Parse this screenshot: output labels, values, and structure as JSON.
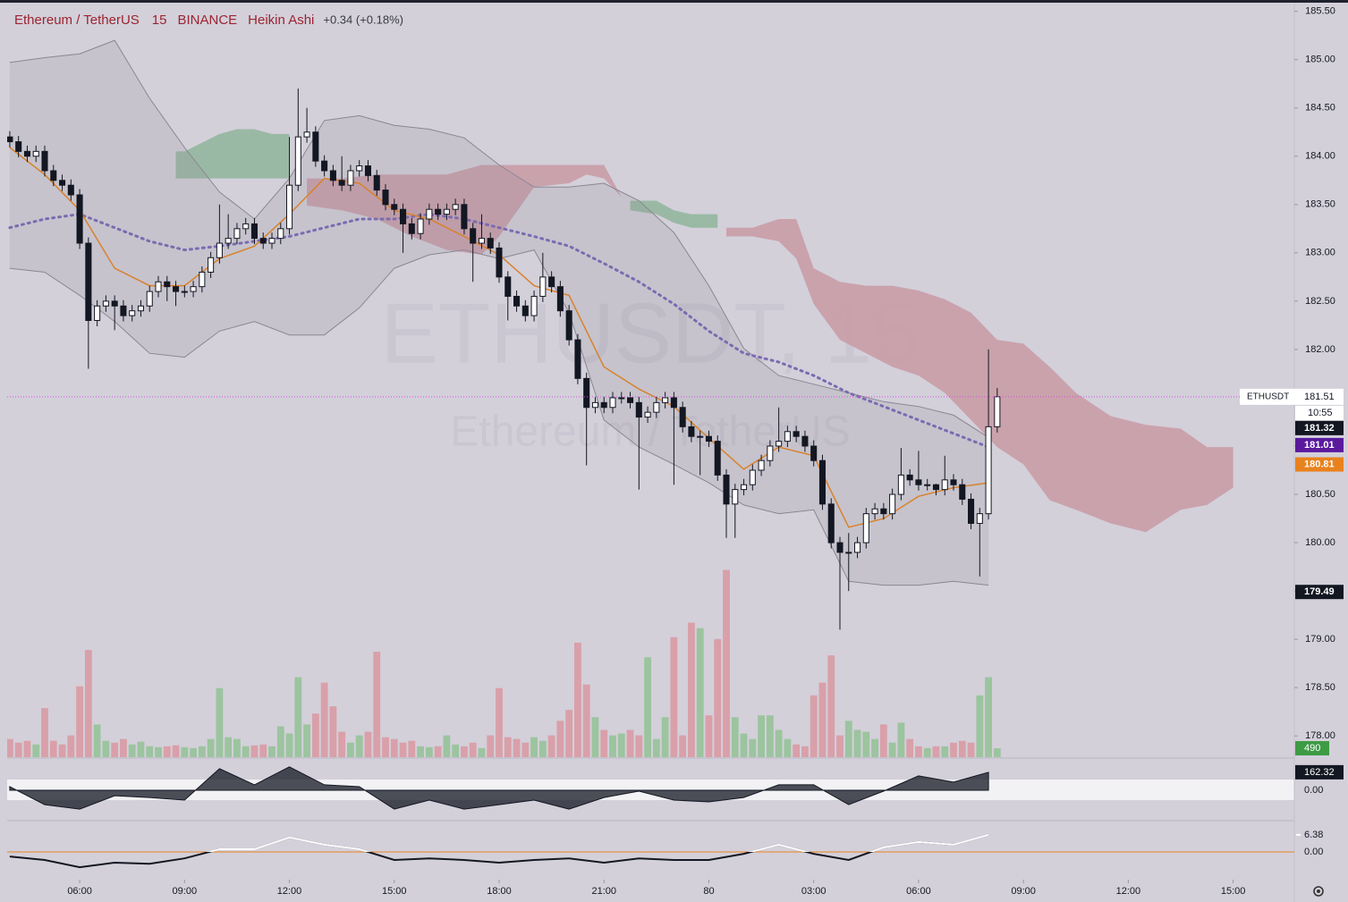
{
  "header": {
    "symbol": "Ethereum / TetherUS",
    "interval": "15",
    "exchange": "BINANCE",
    "style": "Heikin Ashi",
    "change": "+0.34 (+0.18%)"
  },
  "watermark": {
    "line1": "ETHUSDT, 15",
    "line2": "Ethereum / TetherUS"
  },
  "chart_data": {
    "type": "candlestick",
    "xlim": [
      -0.3,
      147
    ],
    "xticks": [
      {
        "value": 8,
        "label": "06:00"
      },
      {
        "value": 20,
        "label": "09:00"
      },
      {
        "value": 32,
        "label": "12:00"
      },
      {
        "value": 44,
        "label": "15:00"
      },
      {
        "value": 56,
        "label": "18:00"
      },
      {
        "value": 68,
        "label": "21:00"
      },
      80,
      {
        "value": 92,
        "label": "03:00"
      },
      {
        "value": 104,
        "label": "06:00"
      },
      {
        "value": 116,
        "label": "09:00"
      },
      {
        "value": 128,
        "label": "12:00"
      },
      {
        "value": 140,
        "label": "15:00"
      }
    ],
    "ylim": [
      177.78,
      185.58
    ],
    "yticks": [
      {
        "value": 185.5,
        "label": "185.50"
      },
      {
        "value": 185,
        "label": "185.00"
      },
      {
        "value": 184.5,
        "label": "184.50"
      },
      {
        "value": 184,
        "label": "184.00"
      },
      {
        "value": 183.5,
        "label": "183.50"
      },
      {
        "value": 183,
        "label": "183.00"
      },
      {
        "value": 182.5,
        "label": "182.50"
      },
      {
        "value": 182,
        "label": "182.00"
      },
      {
        "value": 181.5,
        "label": "181.50"
      },
      {
        "value": 181,
        "label": "181.00"
      },
      {
        "value": 180.5,
        "label": "180.50"
      },
      {
        "value": 180,
        "label": "180.00"
      },
      {
        "value": 179.5,
        "label": "179.50"
      },
      {
        "value": 179,
        "label": "179.00"
      },
      {
        "value": 178.5,
        "label": "178.50"
      },
      {
        "value": 178,
        "label": "178.00"
      }
    ],
    "up_color": "#ffffff",
    "down_color": "#131722",
    "open": [
      184.2,
      184.15,
      184.05,
      184.0,
      184.05,
      183.85,
      183.75,
      183.7,
      183.6,
      183.1,
      182.3,
      182.45,
      182.5,
      182.45,
      182.35,
      182.4,
      182.45,
      182.6,
      182.7,
      182.65,
      182.6,
      182.6,
      182.65,
      182.8,
      182.95,
      183.1,
      183.15,
      183.25,
      183.3,
      183.15,
      183.1,
      183.15,
      183.25,
      183.7,
      184.2,
      184.25,
      183.95,
      183.85,
      183.75,
      183.7,
      183.85,
      183.9,
      183.8,
      183.65,
      183.5,
      183.45,
      183.3,
      183.2,
      183.35,
      183.45,
      183.4,
      183.45,
      183.5,
      183.25,
      183.1,
      183.15,
      183.05,
      182.75,
      182.55,
      182.45,
      182.35,
      182.55,
      182.75,
      182.65,
      182.4,
      182.1,
      181.7,
      181.4,
      181.45,
      181.4,
      181.5,
      181.5,
      181.45,
      181.3,
      181.35,
      181.45,
      181.5,
      181.4,
      181.2,
      181.1,
      181.1,
      181.05,
      180.7,
      180.4,
      180.55,
      180.6,
      180.75,
      180.85,
      181.0,
      181.05,
      181.15,
      181.1,
      181.0,
      180.85,
      180.4,
      180.0,
      179.9,
      179.9,
      180.0,
      180.3,
      180.35,
      180.3,
      180.5,
      180.7,
      180.65,
      180.6,
      180.6,
      180.55,
      180.65,
      180.6,
      180.45,
      180.2,
      180.3,
      181.2
    ],
    "high": [
      184.26,
      184.21,
      184.11,
      184.11,
      184.11,
      183.91,
      183.81,
      183.76,
      183.66,
      183.16,
      182.51,
      182.56,
      182.56,
      182.51,
      182.46,
      182.51,
      182.66,
      182.76,
      182.76,
      182.71,
      182.66,
      182.71,
      182.86,
      183.01,
      183.5,
      183.4,
      183.31,
      183.36,
      183.36,
      183.21,
      183.21,
      183.31,
      184.2,
      184.7,
      184.5,
      184.31,
      184.01,
      183.91,
      184.0,
      183.91,
      183.96,
      183.96,
      183.86,
      183.71,
      183.56,
      183.51,
      183.36,
      183.41,
      183.51,
      183.51,
      183.51,
      183.56,
      183.56,
      183.31,
      183.4,
      183.21,
      183.11,
      182.81,
      182.61,
      182.51,
      182.61,
      183.0,
      182.81,
      182.71,
      182.46,
      182.16,
      181.76,
      181.51,
      181.51,
      181.56,
      181.56,
      181.56,
      181.51,
      181.41,
      181.51,
      181.56,
      181.56,
      181.46,
      181.26,
      181.16,
      181.16,
      181.11,
      180.76,
      180.61,
      180.66,
      180.81,
      180.91,
      181.06,
      181.4,
      181.21,
      181.21,
      181.16,
      181.06,
      180.91,
      180.46,
      180.06,
      180.1,
      180.06,
      180.36,
      180.41,
      180.41,
      180.56,
      180.98,
      180.76,
      180.95,
      180.66,
      180.61,
      180.9,
      180.71,
      180.66,
      180.51,
      180.36,
      182.0,
      181.6
    ],
    "low": [
      184.09,
      183.99,
      183.94,
      183.94,
      183.79,
      183.69,
      183.64,
      183.54,
      183.04,
      181.8,
      182.24,
      182.39,
      182.2,
      182.29,
      182.29,
      182.34,
      182.39,
      182.54,
      182.5,
      182.45,
      182.54,
      182.54,
      182.59,
      182.74,
      182.89,
      183.04,
      183.09,
      183.19,
      183.09,
      183.04,
      183.04,
      183.09,
      183.19,
      183.64,
      184.14,
      183.89,
      183.79,
      183.69,
      183.64,
      183.64,
      183.79,
      183.74,
      183.59,
      183.44,
      183.39,
      183.0,
      183.14,
      183.14,
      183.29,
      183.34,
      183.34,
      183.39,
      183.19,
      182.7,
      183.04,
      182.99,
      182.69,
      182.3,
      182.39,
      182.29,
      182.29,
      182.49,
      182.59,
      182.34,
      182.04,
      181.64,
      180.8,
      181.34,
      181.34,
      181.34,
      181.44,
      181.39,
      180.55,
      181.24,
      181.29,
      181.39,
      180.6,
      181.14,
      181.04,
      180.7,
      180.99,
      180.64,
      180.05,
      180.05,
      180.49,
      180.54,
      180.69,
      180.79,
      180.94,
      180.99,
      181.04,
      180.94,
      180.79,
      180.34,
      179.94,
      179.1,
      179.5,
      179.84,
      179.94,
      180.24,
      180.24,
      180.24,
      180.44,
      180.59,
      180.54,
      180.54,
      180.49,
      180.49,
      180.54,
      180.39,
      180.14,
      179.65,
      180.24,
      181.14
    ],
    "close": [
      184.15,
      184.05,
      184.0,
      184.05,
      183.85,
      183.75,
      183.7,
      183.6,
      183.1,
      182.3,
      182.45,
      182.5,
      182.45,
      182.35,
      182.4,
      182.45,
      182.6,
      182.7,
      182.65,
      182.6,
      182.6,
      182.65,
      182.8,
      182.95,
      183.1,
      183.15,
      183.25,
      183.3,
      183.15,
      183.1,
      183.15,
      183.25,
      183.7,
      184.2,
      184.25,
      183.95,
      183.85,
      183.75,
      183.7,
      183.85,
      183.9,
      183.8,
      183.65,
      183.5,
      183.45,
      183.3,
      183.2,
      183.35,
      183.45,
      183.4,
      183.45,
      183.5,
      183.25,
      183.1,
      183.15,
      183.05,
      182.75,
      182.55,
      182.45,
      182.35,
      182.55,
      182.75,
      182.65,
      182.4,
      182.1,
      181.7,
      181.4,
      181.45,
      181.4,
      181.5,
      181.5,
      181.45,
      181.3,
      181.35,
      181.45,
      181.5,
      181.4,
      181.2,
      181.1,
      181.1,
      181.05,
      180.7,
      180.4,
      180.55,
      180.6,
      180.75,
      180.85,
      181.0,
      181.05,
      181.15,
      181.1,
      181.0,
      180.85,
      180.4,
      180.0,
      179.9,
      179.9,
      180.0,
      180.3,
      180.35,
      180.3,
      180.5,
      180.7,
      180.65,
      180.6,
      180.6,
      180.55,
      180.65,
      180.6,
      180.45,
      180.2,
      180.3,
      181.2,
      181.51
    ],
    "volume": {
      "vlim": [
        0,
        12000
      ],
      "up_color": "#9cc49f",
      "down_color": "#d9a0a9",
      "values": [
        1000,
        800,
        900,
        700,
        2700,
        900,
        700,
        1200,
        3900,
        5900,
        1800,
        900,
        800,
        1000,
        700,
        850,
        600,
        550,
        600,
        650,
        550,
        500,
        600,
        1000,
        3800,
        1100,
        1000,
        600,
        650,
        700,
        600,
        1700,
        1300,
        4400,
        1800,
        2400,
        4100,
        2800,
        1400,
        800,
        1200,
        1400,
        5800,
        1100,
        1000,
        800,
        900,
        600,
        550,
        600,
        1200,
        700,
        600,
        800,
        500,
        1200,
        3800,
        1100,
        1000,
        800,
        1100,
        900,
        1200,
        2000,
        2600,
        6300,
        4000,
        2200,
        1500,
        1200,
        1300,
        1500,
        1200,
        5500,
        1000,
        2200,
        6600,
        1200,
        7400,
        7100,
        2300,
        6500,
        10300,
        2200,
        1300,
        1000,
        2300,
        2300,
        1500,
        1000,
        700,
        600,
        3400,
        4100,
        5600,
        1200,
        2000,
        1500,
        1400,
        1000,
        1800,
        800,
        1900,
        1000,
        600,
        500,
        600,
        600,
        800,
        900,
        800,
        3400,
        4400,
        490
      ],
      "label_color": "#3d9b45"
    },
    "overlay_x": [
      0,
      4,
      8,
      12,
      16,
      20,
      24,
      28,
      32,
      36,
      40,
      44,
      48,
      52,
      56,
      60,
      64,
      68,
      72,
      76,
      80,
      84,
      88,
      92,
      96,
      100,
      104,
      108,
      112
    ],
    "bb_upper": [
      184.97,
      185.02,
      185.06,
      185.2,
      184.6,
      184.09,
      183.63,
      183.35,
      183.77,
      184.37,
      184.42,
      184.32,
      184.28,
      184.19,
      183.91,
      183.68,
      183.68,
      183.72,
      183.54,
      183.21,
      182.66,
      182.01,
      181.73,
      181.64,
      181.55,
      181.46,
      181.41,
      181.32,
      181.09
    ],
    "bb_lower": [
      182.84,
      182.8,
      182.56,
      182.29,
      181.96,
      181.92,
      182.19,
      182.29,
      182.15,
      182.15,
      182.43,
      182.84,
      182.98,
      183.03,
      182.94,
      183.03,
      182.38,
      181.27,
      180.99,
      180.81,
      180.62,
      180.39,
      180.3,
      180.34,
      179.6,
      179.56,
      179.56,
      179.6,
      179.56
    ],
    "bb_basis": [
      183.26,
      183.35,
      183.4,
      183.26,
      183.12,
      183.03,
      183.07,
      183.12,
      183.17,
      183.26,
      183.35,
      183.35,
      183.4,
      183.35,
      183.26,
      183.17,
      183.07,
      182.89,
      182.7,
      182.47,
      182.19,
      181.96,
      181.87,
      181.73,
      181.55,
      181.41,
      181.27,
      181.13,
      180.99
    ],
    "ema": [
      184.09,
      183.81,
      183.44,
      182.84,
      182.66,
      182.66,
      182.94,
      183.07,
      183.4,
      183.77,
      183.72,
      183.44,
      183.35,
      183.17,
      182.98,
      182.66,
      182.56,
      181.82,
      181.59,
      181.41,
      181.08,
      180.76,
      180.99,
      180.9,
      180.16,
      180.25,
      180.48,
      180.57,
      180.62
    ],
    "band_color": "#8a8794",
    "basis_color": "#7b6bb0",
    "ema_color": "#d9822b",
    "cloud": [
      {
        "color": "#8fb59a",
        "x": [
          19,
          20,
          22,
          24,
          26,
          28,
          30,
          32
        ],
        "top": [
          184.05,
          184.05,
          184.14,
          184.23,
          184.28,
          184.28,
          184.23,
          184.23
        ],
        "bottom": [
          183.77,
          183.77,
          183.77,
          183.77,
          183.77,
          183.77,
          183.77,
          183.77
        ]
      },
      {
        "color": "#c89aa3",
        "x": [
          34,
          38,
          42,
          46,
          50,
          54,
          56,
          60,
          64,
          66,
          68,
          70
        ],
        "top": [
          183.77,
          183.77,
          183.81,
          183.81,
          183.81,
          183.91,
          183.91,
          183.91,
          183.91,
          183.91,
          183.91,
          183.58
        ],
        "bottom": [
          183.49,
          183.44,
          183.35,
          183.17,
          183.03,
          182.98,
          183.17,
          183.68,
          183.72,
          183.81,
          183.77,
          183.58
        ]
      },
      {
        "color": "#8fb59a",
        "x": [
          71,
          74,
          76,
          78,
          80,
          81
        ],
        "top": [
          183.54,
          183.54,
          183.44,
          183.4,
          183.4,
          183.4
        ],
        "bottom": [
          183.44,
          183.4,
          183.31,
          183.26,
          183.26,
          183.26
        ]
      },
      {
        "color": "#c89aa3",
        "x": [
          82,
          85,
          88,
          90,
          92,
          95,
          98,
          101,
          104,
          107,
          110,
          113,
          116,
          119,
          122,
          126,
          130,
          134,
          137,
          140
        ],
        "top": [
          183.26,
          183.26,
          183.35,
          183.35,
          182.84,
          182.7,
          182.66,
          182.66,
          182.61,
          182.52,
          182.38,
          182.1,
          182.06,
          181.82,
          181.55,
          181.31,
          181.22,
          181.18,
          180.99,
          180.99
        ],
        "bottom": [
          183.17,
          183.17,
          183.12,
          182.94,
          182.47,
          182.1,
          181.96,
          181.82,
          181.73,
          181.55,
          181.27,
          180.99,
          180.81,
          180.44,
          180.34,
          180.2,
          180.11,
          180.34,
          180.39,
          180.57
        ]
      }
    ],
    "price_line": {
      "name": "ETHUSDT",
      "value": 181.51,
      "countdown": "10:55",
      "color": "#d84de0"
    },
    "markers": [
      {
        "value": 181.32,
        "color": "#131722"
      },
      {
        "value": 181.01,
        "color": "#5b1a9e"
      },
      {
        "value": 180.81,
        "color": "#e8821e"
      },
      {
        "value": 179.49,
        "color": "#131722"
      }
    ],
    "osc1": {
      "ylim": [
        -250,
        250
      ],
      "yticks": [
        {
          "value": 0,
          "label": "0.00"
        }
      ],
      "values": [
        32,
        -130,
        -170,
        -49,
        -65,
        -89,
        194,
        49,
        211,
        49,
        32,
        -170,
        -89,
        -170,
        -130,
        -89,
        -170,
        -65,
        -8,
        -89,
        -105,
        -65,
        49,
        49,
        -130,
        -8,
        130,
        73,
        162.32
      ]
    },
    "osc2": {
      "ylim": [
        -10,
        10
      ],
      "yticks": [
        {
          "value": 0,
          "label": "0.00"
        }
      ],
      "values": [
        -1.7,
        -3,
        -5.7,
        -4,
        -4.4,
        -2.4,
        1,
        1,
        5.4,
        2.7,
        1,
        -3,
        -2.4,
        -3,
        -4,
        -3,
        -2.4,
        -4,
        -2.4,
        -3,
        -3,
        -0.7,
        2.7,
        -0.7,
        -3,
        1.7,
        3.7,
        2.7,
        6.38
      ],
      "zero_color": "#e8821e"
    }
  }
}
